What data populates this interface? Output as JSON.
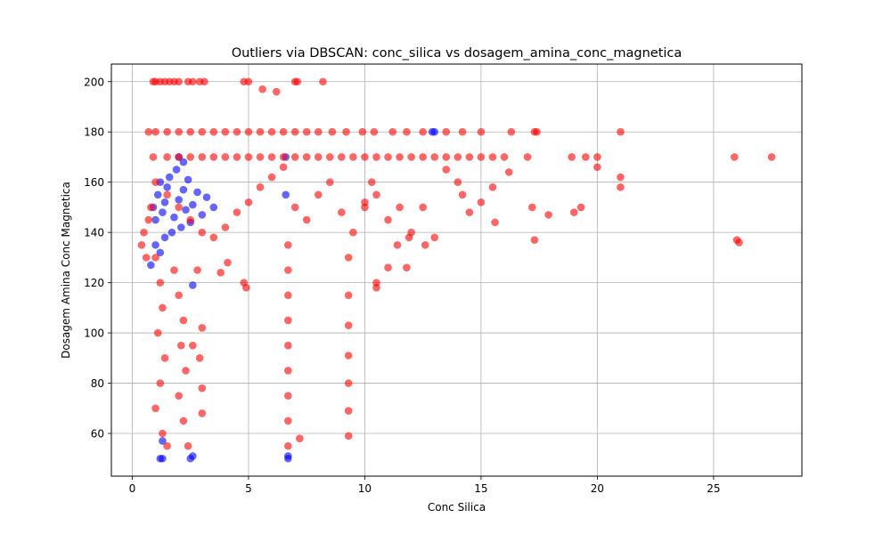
{
  "chart_data": {
    "type": "scatter",
    "title": "Outliers via DBSCAN: conc_silica vs dosagem_amina_conc_magnetica",
    "xlabel": "Conc Silica",
    "ylabel": "Dosagem Amina Conc Magnetica",
    "xlim": [
      -0.9,
      28.8
    ],
    "ylim": [
      43,
      207
    ],
    "x_ticks": [
      0,
      5,
      10,
      15,
      20,
      25
    ],
    "y_ticks": [
      60,
      80,
      100,
      120,
      140,
      160,
      180,
      200
    ],
    "grid": true,
    "legend": "none",
    "colors": {
      "inliers": "#0000ff",
      "outliers": "#ff0000"
    },
    "series": [
      {
        "color": "#0000ff",
        "points": [
          [
            0.9,
            150
          ],
          [
            1.0,
            145
          ],
          [
            1.1,
            155
          ],
          [
            1.2,
            160
          ],
          [
            1.3,
            148
          ],
          [
            1.4,
            152
          ],
          [
            1.5,
            158
          ],
          [
            1.6,
            162
          ],
          [
            1.7,
            140
          ],
          [
            1.8,
            146
          ],
          [
            1.9,
            165
          ],
          [
            2.0,
            153
          ],
          [
            2.1,
            142
          ],
          [
            2.2,
            157
          ],
          [
            2.3,
            149
          ],
          [
            2.4,
            161
          ],
          [
            2.5,
            144
          ],
          [
            2.6,
            151
          ],
          [
            2.8,
            156
          ],
          [
            3.0,
            147
          ],
          [
            3.2,
            154
          ],
          [
            3.5,
            150
          ],
          [
            1.0,
            135
          ],
          [
            1.2,
            132
          ],
          [
            0.8,
            127
          ],
          [
            1.4,
            138
          ],
          [
            2.2,
            168
          ],
          [
            2.0,
            170
          ],
          [
            2.6,
            119
          ],
          [
            1.2,
            50
          ],
          [
            1.3,
            50
          ],
          [
            2.5,
            50
          ],
          [
            2.6,
            51
          ],
          [
            1.3,
            57
          ],
          [
            6.7,
            50
          ],
          [
            6.7,
            51
          ],
          [
            6.6,
            155
          ],
          [
            6.6,
            170
          ],
          [
            12.9,
            180
          ],
          [
            13.0,
            180
          ]
        ]
      },
      {
        "color": "#ff0000",
        "points": [
          [
            0.4,
            135
          ],
          [
            0.5,
            140
          ],
          [
            0.6,
            130
          ],
          [
            0.7,
            145
          ],
          [
            0.8,
            150
          ],
          [
            0.9,
            200
          ],
          [
            1.0,
            200
          ],
          [
            1.2,
            200
          ],
          [
            1.4,
            200
          ],
          [
            1.6,
            200
          ],
          [
            1.8,
            200
          ],
          [
            2.0,
            200
          ],
          [
            2.4,
            200
          ],
          [
            2.6,
            200
          ],
          [
            2.9,
            200
          ],
          [
            3.1,
            200
          ],
          [
            4.8,
            200
          ],
          [
            5.0,
            200
          ],
          [
            5.6,
            197
          ],
          [
            6.2,
            196
          ],
          [
            7.0,
            200
          ],
          [
            7.1,
            200
          ],
          [
            8.2,
            200
          ],
          [
            0.7,
            180
          ],
          [
            1.0,
            180
          ],
          [
            1.5,
            180
          ],
          [
            2.0,
            180
          ],
          [
            2.5,
            180
          ],
          [
            3.0,
            180
          ],
          [
            3.5,
            180
          ],
          [
            4.0,
            180
          ],
          [
            4.5,
            180
          ],
          [
            5.0,
            180
          ],
          [
            5.5,
            180
          ],
          [
            6.0,
            180
          ],
          [
            6.5,
            180
          ],
          [
            7.0,
            180
          ],
          [
            7.5,
            180
          ],
          [
            8.0,
            180
          ],
          [
            8.6,
            180
          ],
          [
            9.2,
            180
          ],
          [
            9.9,
            180
          ],
          [
            10.4,
            180
          ],
          [
            11.2,
            180
          ],
          [
            11.8,
            180
          ],
          [
            12.5,
            180
          ],
          [
            13.5,
            180
          ],
          [
            14.2,
            180
          ],
          [
            15.0,
            180
          ],
          [
            16.3,
            180
          ],
          [
            17.3,
            180
          ],
          [
            17.4,
            180
          ],
          [
            21.0,
            180
          ],
          [
            0.9,
            170
          ],
          [
            1.5,
            170
          ],
          [
            2.0,
            170
          ],
          [
            2.5,
            170
          ],
          [
            3.0,
            170
          ],
          [
            3.5,
            170
          ],
          [
            4.0,
            170
          ],
          [
            4.5,
            170
          ],
          [
            5.0,
            170
          ],
          [
            5.5,
            170
          ],
          [
            6.0,
            170
          ],
          [
            6.5,
            170
          ],
          [
            7.0,
            170
          ],
          [
            7.5,
            170
          ],
          [
            8.0,
            170
          ],
          [
            8.5,
            170
          ],
          [
            9.0,
            170
          ],
          [
            9.5,
            170
          ],
          [
            10.0,
            170
          ],
          [
            10.5,
            170
          ],
          [
            11.0,
            170
          ],
          [
            11.5,
            170
          ],
          [
            12.0,
            170
          ],
          [
            12.5,
            170
          ],
          [
            13.0,
            170
          ],
          [
            13.5,
            170
          ],
          [
            14.0,
            170
          ],
          [
            14.5,
            170
          ],
          [
            15.0,
            170
          ],
          [
            15.5,
            170
          ],
          [
            16.0,
            170
          ],
          [
            17.0,
            170
          ],
          [
            18.9,
            170
          ],
          [
            19.5,
            170
          ],
          [
            20.0,
            170
          ],
          [
            25.9,
            170
          ],
          [
            27.5,
            170
          ],
          [
            1.0,
            160
          ],
          [
            1.5,
            155
          ],
          [
            2.0,
            150
          ],
          [
            2.5,
            145
          ],
          [
            3.0,
            140
          ],
          [
            3.5,
            138
          ],
          [
            4.0,
            142
          ],
          [
            4.5,
            148
          ],
          [
            5.0,
            152
          ],
          [
            5.5,
            158
          ],
          [
            6.0,
            162
          ],
          [
            6.5,
            166
          ],
          [
            7.0,
            150
          ],
          [
            7.5,
            145
          ],
          [
            8.0,
            155
          ],
          [
            8.5,
            160
          ],
          [
            9.0,
            148
          ],
          [
            9.5,
            140
          ],
          [
            10.0,
            150
          ],
          [
            10.5,
            155
          ],
          [
            11.0,
            145
          ],
          [
            11.5,
            150
          ],
          [
            12.0,
            140
          ],
          [
            12.5,
            150
          ],
          [
            13.0,
            138
          ],
          [
            13.5,
            165
          ],
          [
            14.2,
            155
          ],
          [
            15.0,
            152
          ],
          [
            15.5,
            158
          ],
          [
            16.2,
            164
          ],
          [
            17.2,
            150
          ],
          [
            17.3,
            137
          ],
          [
            17.9,
            147
          ],
          [
            19.0,
            148
          ],
          [
            19.3,
            150
          ],
          [
            20.0,
            166
          ],
          [
            21.0,
            158
          ],
          [
            21.0,
            162
          ],
          [
            26.1,
            136
          ],
          [
            26.0,
            137
          ],
          [
            1.0,
            130
          ],
          [
            1.2,
            120
          ],
          [
            1.3,
            110
          ],
          [
            1.1,
            100
          ],
          [
            1.4,
            90
          ],
          [
            1.2,
            80
          ],
          [
            1.0,
            70
          ],
          [
            1.3,
            60
          ],
          [
            1.5,
            55
          ],
          [
            1.8,
            125
          ],
          [
            2.0,
            115
          ],
          [
            2.2,
            105
          ],
          [
            2.1,
            95
          ],
          [
            2.3,
            85
          ],
          [
            2.0,
            75
          ],
          [
            2.2,
            65
          ],
          [
            2.4,
            55
          ],
          [
            2.8,
            125
          ],
          [
            3.0,
            102
          ],
          [
            2.9,
            90
          ],
          [
            3.0,
            78
          ],
          [
            3.0,
            68
          ],
          [
            2.6,
            95
          ],
          [
            4.8,
            120
          ],
          [
            4.9,
            118
          ],
          [
            3.8,
            124
          ],
          [
            4.1,
            128
          ],
          [
            6.7,
            125
          ],
          [
            6.7,
            115
          ],
          [
            6.7,
            105
          ],
          [
            6.7,
            95
          ],
          [
            6.7,
            85
          ],
          [
            6.7,
            75
          ],
          [
            6.7,
            65
          ],
          [
            6.7,
            55
          ],
          [
            6.7,
            135
          ],
          [
            7.2,
            58
          ],
          [
            9.3,
            130
          ],
          [
            9.3,
            115
          ],
          [
            9.3,
            103
          ],
          [
            9.3,
            91
          ],
          [
            9.3,
            80
          ],
          [
            9.3,
            69
          ],
          [
            9.3,
            59
          ],
          [
            10.5,
            120
          ],
          [
            10.5,
            118
          ],
          [
            11.0,
            126
          ],
          [
            11.8,
            126
          ],
          [
            10.0,
            152
          ],
          [
            10.3,
            160
          ],
          [
            11.4,
            135
          ],
          [
            11.9,
            138
          ],
          [
            12.6,
            135
          ],
          [
            14.0,
            160
          ],
          [
            14.5,
            148
          ],
          [
            15.6,
            144
          ]
        ]
      }
    ]
  }
}
